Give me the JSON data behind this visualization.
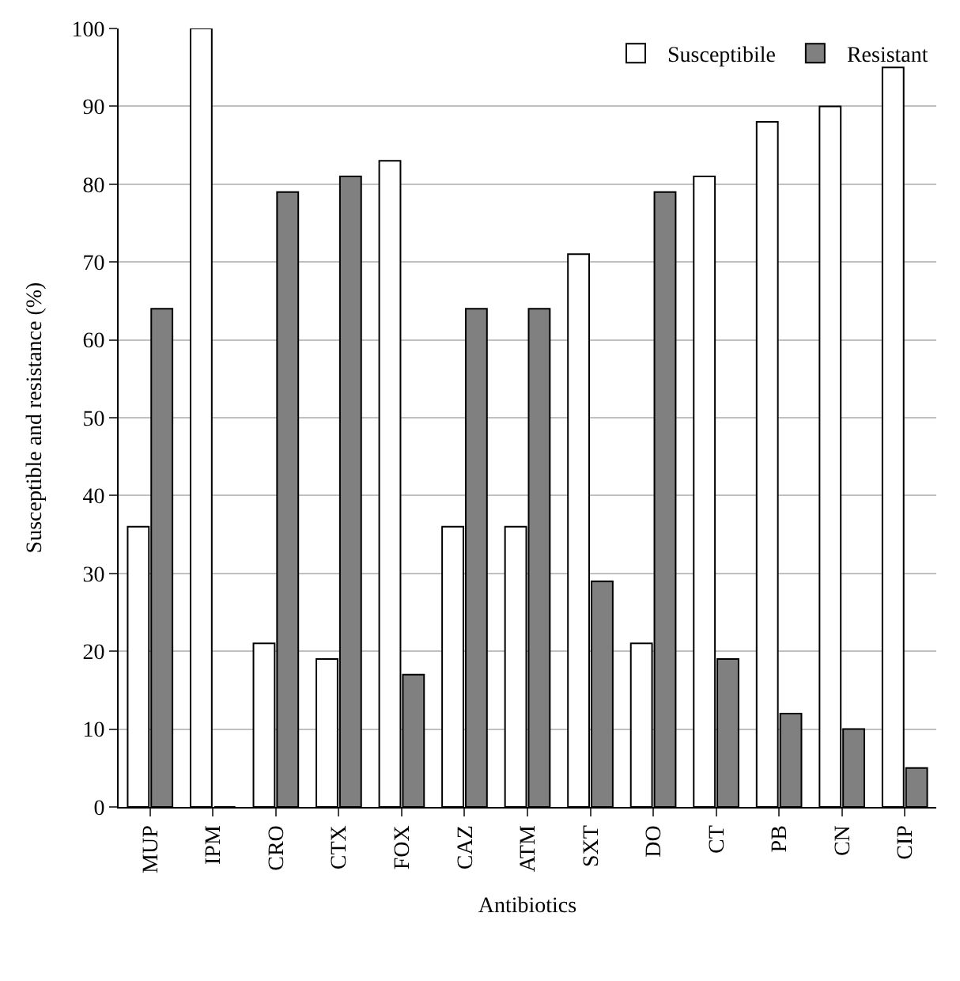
{
  "chart_data": {
    "type": "bar",
    "xlabel": "Antibiotics",
    "ylabel": "Susceptible and resistance (%)",
    "categories": [
      "MUP",
      "IPM",
      "CRO",
      "CTX",
      "FOX",
      "CAZ",
      "ATM",
      "SXT",
      "DO",
      "CT",
      "PB",
      "CN",
      "CIP"
    ],
    "series": [
      {
        "name": "Susceptibile",
        "color": "#ffffff",
        "values": [
          36,
          100,
          21,
          19,
          83,
          36,
          36,
          71,
          21,
          81,
          88,
          90,
          95
        ]
      },
      {
        "name": "Resistant",
        "color": "#808080",
        "values": [
          64,
          0,
          79,
          81,
          17,
          64,
          64,
          29,
          79,
          19,
          12,
          10,
          5
        ]
      }
    ],
    "ylim": [
      0,
      100
    ],
    "yticks": [
      0,
      10,
      20,
      30,
      40,
      50,
      60,
      70,
      80,
      90,
      100
    ],
    "grid": "y",
    "legend": "top right"
  }
}
